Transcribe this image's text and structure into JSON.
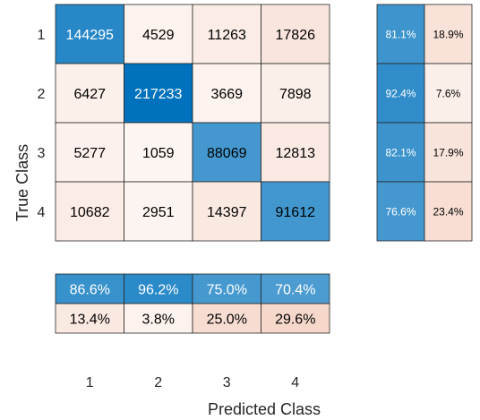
{
  "chart_data": {
    "type": "heatmap",
    "title": "",
    "xlabel": "Predicted Class",
    "ylabel": "True Class",
    "row_labels": [
      "1",
      "2",
      "3",
      "4"
    ],
    "col_labels": [
      "1",
      "2",
      "3",
      "4"
    ],
    "matrix": [
      [
        144295,
        4529,
        11263,
        17826
      ],
      [
        6427,
        217233,
        3669,
        7898
      ],
      [
        5277,
        1059,
        88069,
        12813
      ],
      [
        10682,
        2951,
        14397,
        91612
      ]
    ],
    "row_summary": [
      [
        "81.1%",
        "18.9%"
      ],
      [
        "92.4%",
        "7.6%"
      ],
      [
        "82.1%",
        "17.9%"
      ],
      [
        "76.6%",
        "23.4%"
      ]
    ],
    "column_summary": [
      [
        "86.6%",
        "96.2%",
        "75.0%",
        "70.4%"
      ],
      [
        "13.4%",
        "3.8%",
        "25.0%",
        "29.6%"
      ]
    ],
    "colors": {
      "correct": "#0072bd",
      "incorrect": "#d95319",
      "border": "#262626",
      "text_dark": "#000000",
      "text_light": "#ffffff"
    }
  }
}
